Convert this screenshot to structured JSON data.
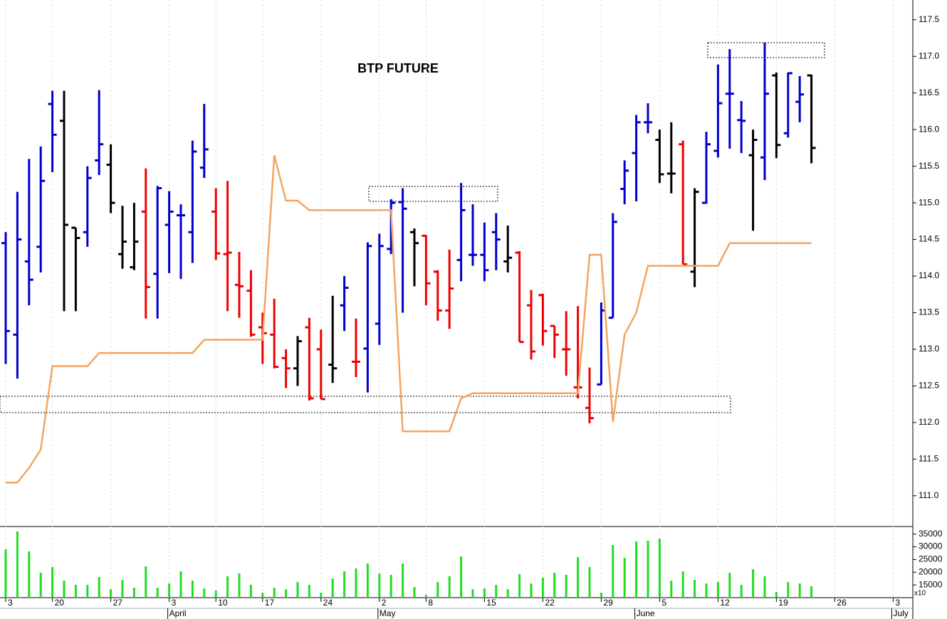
{
  "chart_data": [
    {
      "type": "ohlc",
      "title": "BTP FUTURE",
      "categories": [
        "3",
        null,
        null,
        null,
        "20",
        null,
        null,
        null,
        null,
        "27",
        null,
        null,
        null,
        null,
        "3",
        null,
        null,
        null,
        "10",
        null,
        null,
        null,
        "17",
        null,
        null,
        null,
        null,
        "24",
        null,
        null,
        null,
        null,
        "2",
        null,
        null,
        null,
        "8",
        null,
        null,
        null,
        null,
        "15",
        null,
        null,
        null,
        null,
        "22",
        null,
        null,
        null,
        null,
        "29",
        null,
        null,
        null,
        null,
        "5",
        null,
        null,
        null,
        null,
        "12",
        null,
        null,
        null,
        null,
        "19",
        null,
        null,
        null,
        null,
        "26",
        null,
        null,
        null,
        null,
        "3"
      ],
      "months": [
        null,
        null,
        null,
        null,
        null,
        null,
        null,
        null,
        null,
        null,
        null,
        null,
        null,
        null,
        "April",
        null,
        null,
        null,
        null,
        null,
        null,
        null,
        null,
        null,
        null,
        null,
        null,
        null,
        null,
        null,
        null,
        null,
        "May",
        null,
        null,
        null,
        null,
        null,
        null,
        null,
        null,
        null,
        null,
        null,
        null,
        null,
        null,
        null,
        null,
        null,
        null,
        null,
        null,
        null,
        "June",
        null,
        null,
        null,
        null,
        null,
        null,
        null,
        null,
        null,
        null,
        null,
        null,
        null,
        null,
        null,
        null,
        null,
        null,
        null,
        null,
        null,
        "July"
      ],
      "open": [
        114.45,
        113.2,
        114.2,
        114.4,
        116.35,
        116.12,
        114.66,
        114.6,
        115.58,
        115.52,
        114.3,
        114.12,
        114.88,
        114.03,
        114.7,
        114.83,
        114.6,
        115.48,
        114.88,
        114.3,
        113.88,
        113.8,
        113.3,
        113.2,
        112.88,
        112.74,
        113.3,
        113.0,
        112.79,
        113.6,
        112.83,
        113.01,
        113.35,
        114.37,
        115.01,
        114.6,
        114.55,
        114.06,
        113.53,
        114.22,
        114.29,
        114.29,
        114.6,
        114.2,
        114.32,
        113.6,
        113.74,
        113.32,
        113.0,
        112.48,
        112.2,
        112.52,
        113.43,
        115.19,
        115.68,
        116.1,
        115.86,
        115.4,
        115.8,
        114.06,
        115.0,
        115.71,
        116.49,
        116.13,
        115.65,
        115.62,
        116.74,
        115.95,
        116.38,
        116.74,
        null,
        null,
        null,
        null,
        null,
        null,
        null
      ],
      "high": [
        114.6,
        115.15,
        115.6,
        115.77,
        116.53,
        116.53,
        114.66,
        115.5,
        116.54,
        115.8,
        114.96,
        115.0,
        115.47,
        115.23,
        115.16,
        114.98,
        115.85,
        116.35,
        115.2,
        115.3,
        114.33,
        114.08,
        113.5,
        113.69,
        113.0,
        113.18,
        113.43,
        113.27,
        113.73,
        114.0,
        113.42,
        114.46,
        114.58,
        115.05,
        115.2,
        114.65,
        114.56,
        114.08,
        114.36,
        115.27,
        114.98,
        114.73,
        114.86,
        114.69,
        114.34,
        113.81,
        113.76,
        113.32,
        113.52,
        113.59,
        112.75,
        113.64,
        114.86,
        115.58,
        116.2,
        116.36,
        116.0,
        116.1,
        115.85,
        115.2,
        115.97,
        116.89,
        117.1,
        116.39,
        116.0,
        117.19,
        116.78,
        116.78,
        116.73,
        116.75,
        null,
        null,
        null,
        null,
        null,
        null,
        null
      ],
      "low": [
        112.8,
        112.6,
        113.6,
        114.05,
        115.42,
        113.52,
        113.52,
        114.4,
        115.38,
        114.86,
        114.1,
        114.08,
        113.42,
        113.42,
        114.04,
        113.96,
        114.18,
        115.34,
        114.22,
        113.52,
        113.43,
        113.17,
        112.8,
        112.74,
        112.47,
        112.5,
        112.3,
        112.32,
        112.54,
        113.25,
        112.62,
        112.41,
        113.06,
        114.3,
        113.5,
        113.86,
        113.6,
        113.39,
        113.28,
        113.93,
        114.14,
        113.93,
        114.08,
        114.05,
        113.1,
        112.86,
        113.05,
        112.88,
        112.64,
        112.33,
        111.99,
        112.52,
        113.43,
        114.98,
        115.02,
        115.95,
        115.27,
        115.13,
        114.16,
        113.85,
        114.99,
        115.62,
        115.74,
        115.68,
        114.62,
        115.31,
        115.61,
        115.89,
        116.1,
        115.54,
        null,
        null,
        null,
        null,
        null,
        null,
        null
      ],
      "close": [
        113.25,
        114.5,
        113.95,
        115.3,
        115.93,
        114.7,
        114.52,
        115.34,
        115.8,
        115.0,
        114.47,
        114.47,
        113.85,
        115.2,
        114.88,
        114.83,
        115.7,
        115.73,
        114.31,
        114.32,
        113.86,
        113.2,
        113.22,
        112.76,
        112.74,
        113.11,
        112.33,
        112.32,
        112.74,
        113.84,
        112.83,
        114.41,
        114.41,
        115.0,
        114.92,
        114.45,
        113.9,
        113.53,
        113.83,
        114.9,
        114.29,
        114.08,
        114.5,
        114.25,
        113.1,
        112.97,
        113.25,
        113.2,
        113.0,
        112.48,
        112.06,
        113.53,
        114.74,
        115.44,
        116.1,
        116.1,
        115.39,
        115.4,
        114.16,
        115.15,
        115.8,
        116.36,
        116.49,
        116.12,
        115.86,
        116.49,
        115.79,
        116.77,
        116.48,
        115.75,
        null,
        null,
        null,
        null,
        null,
        null,
        null
      ],
      "colors": [
        "#00c",
        "#00c",
        "#00c",
        "#00c",
        "#00c",
        "#000",
        "#000",
        "#00c",
        "#00c",
        "#000",
        "#000",
        "#000",
        "#e00",
        "#00c",
        "#00c",
        "#00c",
        "#00c",
        "#00c",
        "#e00",
        "#e00",
        "#e00",
        "#e00",
        "#e00",
        "#e00",
        "#e00",
        "#000",
        "#e00",
        "#e00",
        "#000",
        "#00c",
        "#e00",
        "#00c",
        "#00c",
        "#00c",
        "#00c",
        "#000",
        "#e00",
        "#e00",
        "#e00",
        "#00c",
        "#00c",
        "#00c",
        "#00c",
        "#000",
        "#e00",
        "#e00",
        "#e00",
        "#e00",
        "#e00",
        "#e00",
        "#e00",
        "#00c",
        "#00c",
        "#00c",
        "#00c",
        "#00c",
        "#000",
        "#000",
        "#e00",
        "#000",
        "#00c",
        "#00c",
        "#00c",
        "#00c",
        "#000",
        "#00c",
        "#000",
        "#00c",
        "#00c",
        "#000",
        null,
        null,
        null,
        null,
        null,
        null,
        null
      ],
      "line": {
        "color": "#f4a460",
        "values": [
          111.18,
          111.18,
          111.38,
          111.63,
          112.77,
          112.77,
          112.77,
          112.77,
          112.95,
          112.95,
          112.95,
          112.95,
          112.95,
          112.95,
          112.95,
          112.95,
          112.95,
          113.13,
          113.13,
          113.13,
          113.13,
          113.13,
          113.13,
          115.65,
          115.03,
          115.03,
          114.9,
          114.9,
          114.9,
          114.9,
          114.9,
          114.9,
          114.9,
          114.9,
          111.88,
          111.88,
          111.88,
          111.88,
          111.88,
          112.33,
          112.4,
          112.4,
          112.4,
          112.4,
          112.4,
          112.4,
          112.4,
          112.4,
          112.4,
          112.4,
          114.29,
          114.29,
          112.01,
          113.2,
          113.5,
          114.14,
          114.14,
          114.14,
          114.14,
          114.14,
          114.14,
          114.14,
          114.45,
          114.45,
          114.45,
          114.45,
          114.45,
          114.45,
          114.45,
          114.45,
          null,
          null,
          null,
          null,
          null,
          null,
          null
        ]
      },
      "ylim": [
        110.58,
        117.77
      ],
      "yticks": [
        {
          "value": 111,
          "label": "111.0"
        },
        111.5,
        {
          "value": 112,
          "label": "112.0"
        },
        112.5,
        {
          "value": 113,
          "label": "113.0"
        },
        113.5,
        {
          "value": 114,
          "label": "114.0"
        },
        114.5,
        {
          "value": 115,
          "label": "115.0"
        },
        115.5,
        {
          "value": 116,
          "label": "116.0"
        },
        116.5,
        {
          "value": 117,
          "label": "117.0"
        },
        117.5
      ],
      "grid": true
    },
    {
      "type": "bar",
      "color": "#22dd22",
      "values": [
        29040,
        36040,
        28200,
        19800,
        22040,
        16720,
        15040,
        15040,
        18120,
        13360,
        17000,
        13920,
        22320,
        13920,
        15600,
        20360,
        16720,
        13640,
        12800,
        18400,
        19520,
        15040,
        11960,
        13920,
        13360,
        16160,
        15040,
        11960,
        17560,
        20360,
        21480,
        23440,
        19520,
        18960,
        23440,
        14200,
        11000,
        16160,
        18400,
        26240,
        13360,
        13640,
        15040,
        13360,
        19240,
        15600,
        17840,
        19800,
        18960,
        25960,
        22040,
        11960,
        30720,
        25680,
        32120,
        32400,
        33240,
        16720,
        20360,
        17000,
        15600,
        16160,
        19800,
        15040,
        21200,
        18400,
        12240,
        16160,
        15600,
        14480,
        null,
        null,
        null,
        null,
        null,
        null,
        null
      ],
      "ylim": [
        10000,
        38000
      ],
      "yticks": [
        15000,
        20000,
        25000,
        30000,
        35000
      ],
      "unit_label": "x10"
    }
  ]
}
